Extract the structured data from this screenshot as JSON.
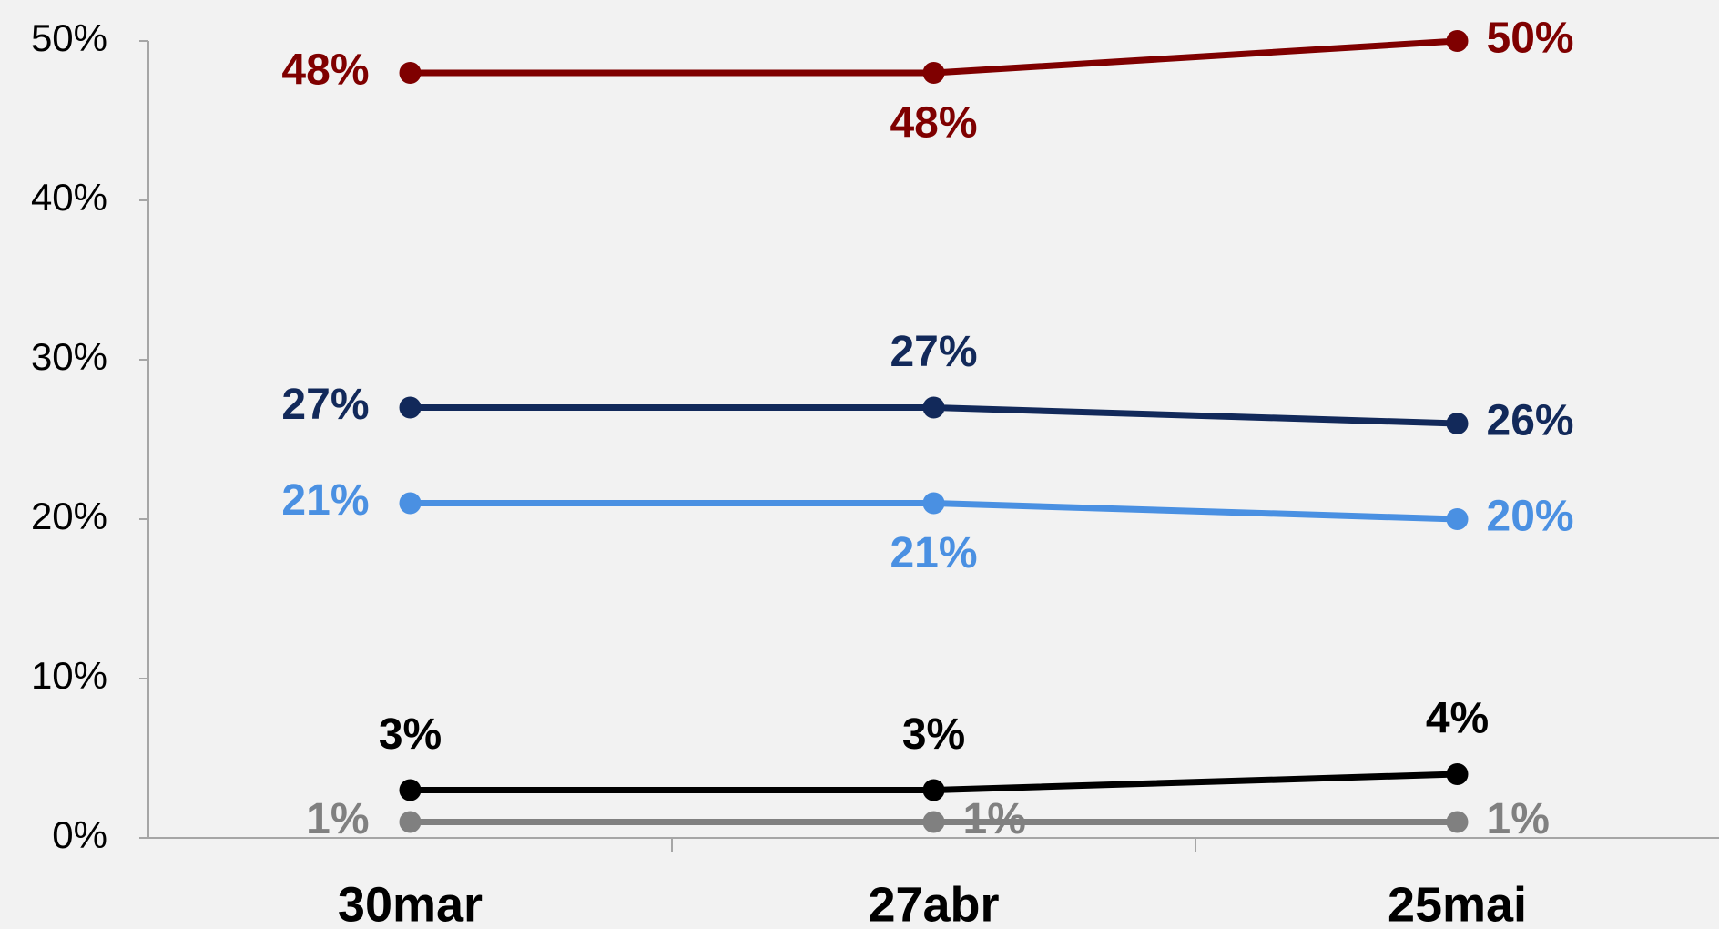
{
  "chart_data": {
    "type": "line",
    "categories": [
      "30mar",
      "27abr",
      "25mai"
    ],
    "ylim": [
      0,
      50
    ],
    "yticks": [
      {
        "value": 0,
        "label": "0%"
      },
      {
        "value": 10,
        "label": "10%"
      },
      {
        "value": 20,
        "label": "20%"
      },
      {
        "value": 30,
        "label": "30%"
      },
      {
        "value": 40,
        "label": "40%"
      },
      {
        "value": 50,
        "label": "50%"
      }
    ],
    "grid": false,
    "series": [
      {
        "color": "#7f0000",
        "values": [
          48,
          48,
          50
        ],
        "value_labels": [
          "48%",
          "48%",
          "50%"
        ]
      },
      {
        "color": "#12295a",
        "values": [
          27,
          27,
          26
        ],
        "value_labels": [
          "27%",
          "27%",
          "26%"
        ]
      },
      {
        "color": "#4a90e2",
        "values": [
          21,
          21,
          20
        ],
        "value_labels": [
          "21%",
          "21%",
          "20%"
        ]
      },
      {
        "color": "#000000",
        "values": [
          3,
          3,
          4
        ],
        "value_labels": [
          "3%",
          "3%",
          "4%"
        ]
      },
      {
        "color": "#808080",
        "values": [
          1,
          1,
          1
        ],
        "value_labels": [
          "1%",
          "1%",
          "1%"
        ]
      }
    ]
  }
}
